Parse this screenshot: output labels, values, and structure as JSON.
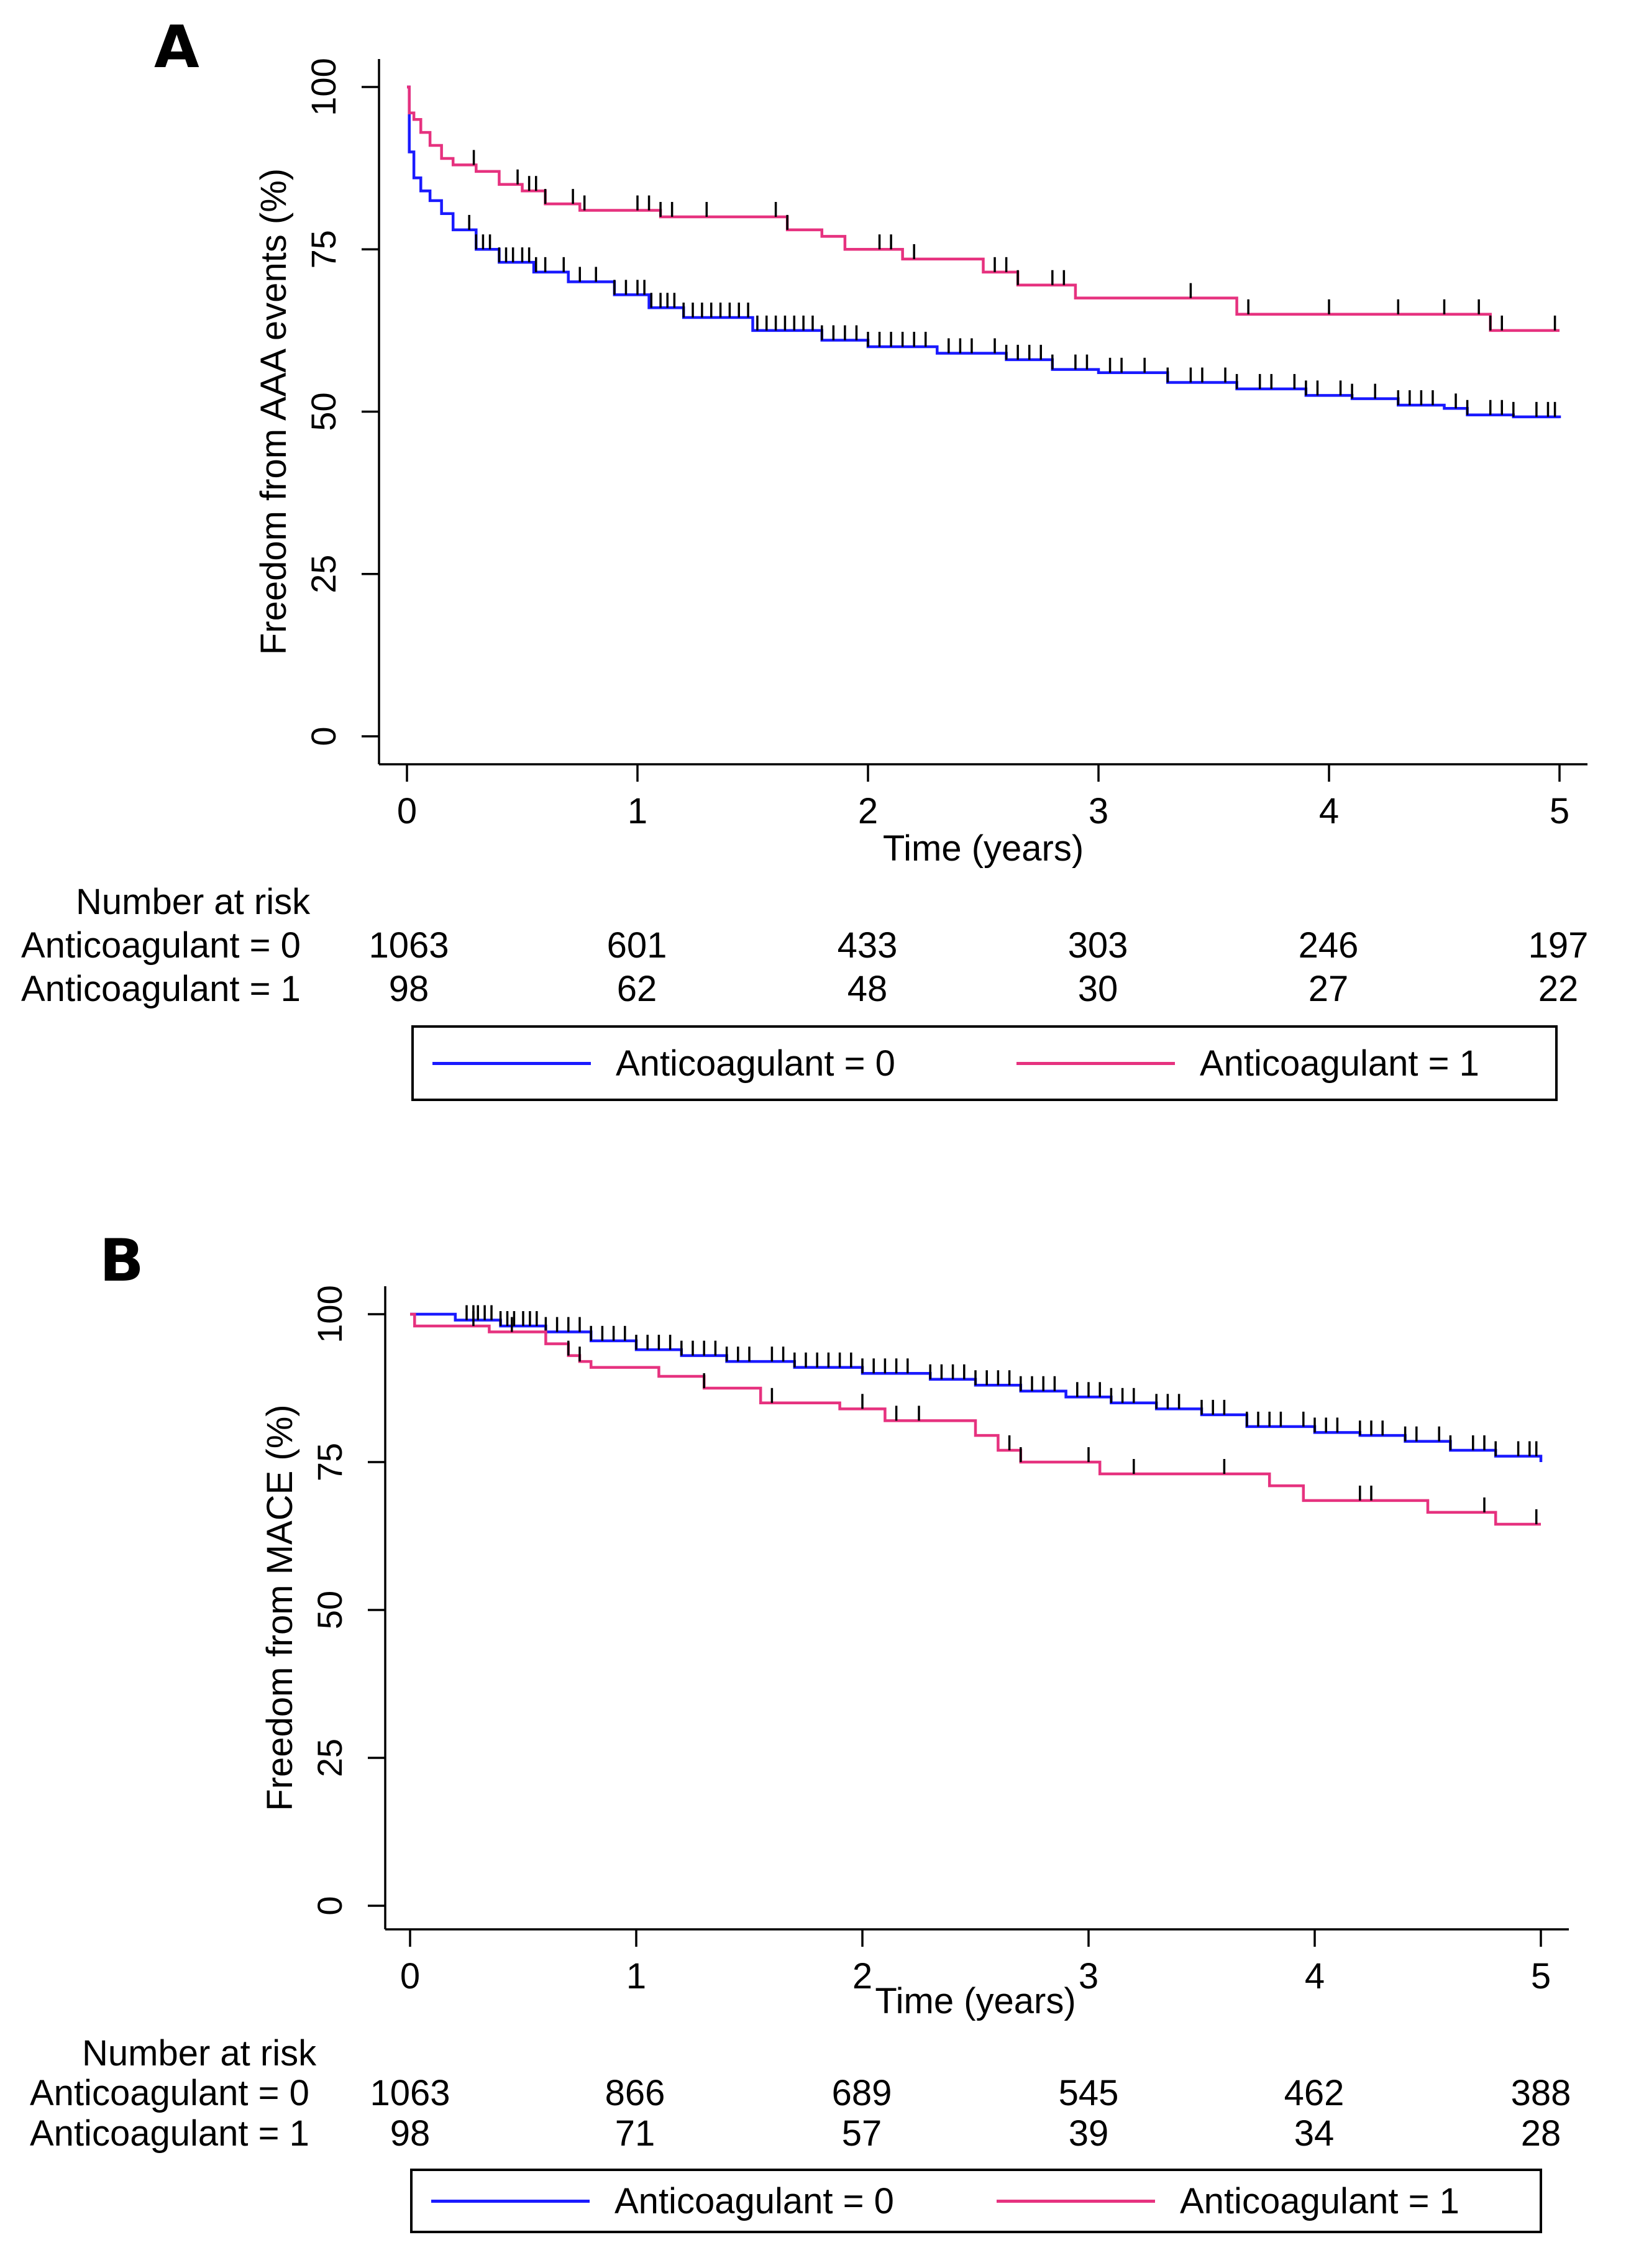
{
  "chart_data": [
    {
      "type": "line",
      "subtype": "kaplan-meier",
      "panel_label": "A",
      "xlabel": "Time (years)",
      "ylabel": "Freedom from AAA events (%)",
      "xlim": [
        0,
        5
      ],
      "ylim": [
        0,
        100
      ],
      "x_ticks": [
        "0",
        "1",
        "2",
        "3",
        "4",
        "5"
      ],
      "y_ticks": [
        "0",
        "25",
        "50",
        "75",
        "100"
      ],
      "colors": {
        "anticoagulant_0": "#1a1aff",
        "anticoagulant_1": "#e6327f",
        "censor": "#000000"
      },
      "series": [
        {
          "name": "Anticoagulant = 0",
          "color": "#1a1aff",
          "steps": [
            [
              0,
              100
            ],
            [
              0.01,
              90
            ],
            [
              0.03,
              86
            ],
            [
              0.06,
              84
            ],
            [
              0.1,
              82.5
            ],
            [
              0.15,
              80.5
            ],
            [
              0.2,
              78
            ],
            [
              0.3,
              75
            ],
            [
              0.4,
              73
            ],
            [
              0.55,
              71.5
            ],
            [
              0.7,
              70
            ],
            [
              0.9,
              68
            ],
            [
              1.05,
              66
            ],
            [
              1.2,
              64.5
            ],
            [
              1.5,
              62.5
            ],
            [
              1.8,
              61
            ],
            [
              2.0,
              60
            ],
            [
              2.3,
              59
            ],
            [
              2.6,
              58
            ],
            [
              2.8,
              56.5
            ],
            [
              3.0,
              56
            ],
            [
              3.3,
              54.5
            ],
            [
              3.6,
              53.5
            ],
            [
              3.9,
              52.5
            ],
            [
              4.1,
              52
            ],
            [
              4.3,
              51
            ],
            [
              4.5,
              50.5
            ],
            [
              4.6,
              49.5
            ],
            [
              4.8,
              49.2
            ],
            [
              5.0,
              49
            ]
          ],
          "censor_times": [
            0.27,
            0.3,
            0.33,
            0.36,
            0.4,
            0.43,
            0.46,
            0.5,
            0.53,
            0.56,
            0.6,
            0.68,
            0.75,
            0.82,
            0.9,
            0.95,
            1.0,
            1.03,
            1.06,
            1.1,
            1.13,
            1.16,
            1.2,
            1.24,
            1.28,
            1.32,
            1.36,
            1.4,
            1.44,
            1.48,
            1.52,
            1.56,
            1.6,
            1.64,
            1.68,
            1.72,
            1.76,
            1.8,
            1.85,
            1.9,
            1.95,
            2.0,
            2.05,
            2.1,
            2.15,
            2.2,
            2.25,
            2.35,
            2.4,
            2.45,
            2.55,
            2.6,
            2.65,
            2.7,
            2.75,
            2.8,
            2.9,
            2.95,
            3.05,
            3.1,
            3.2,
            3.3,
            3.4,
            3.45,
            3.55,
            3.6,
            3.7,
            3.75,
            3.85,
            3.9,
            3.95,
            4.05,
            4.1,
            4.2,
            4.3,
            4.35,
            4.4,
            4.45,
            4.55,
            4.6,
            4.7,
            4.75,
            4.8,
            4.9,
            4.95,
            4.98
          ]
        },
        {
          "name": "Anticoagulant = 1",
          "color": "#e6327f",
          "steps": [
            [
              0,
              100
            ],
            [
              0.01,
              96
            ],
            [
              0.03,
              95
            ],
            [
              0.06,
              93
            ],
            [
              0.1,
              91
            ],
            [
              0.15,
              89
            ],
            [
              0.2,
              88
            ],
            [
              0.3,
              87
            ],
            [
              0.4,
              85
            ],
            [
              0.5,
              84
            ],
            [
              0.6,
              82
            ],
            [
              0.75,
              81
            ],
            [
              1.1,
              80
            ],
            [
              1.65,
              78
            ],
            [
              1.8,
              77
            ],
            [
              1.9,
              75
            ],
            [
              2.15,
              73.5
            ],
            [
              2.5,
              71.5
            ],
            [
              2.65,
              69.5
            ],
            [
              2.9,
              67.5
            ],
            [
              3.6,
              65
            ],
            [
              4.7,
              62.5
            ],
            [
              5.0,
              62.5
            ]
          ],
          "censor_times": [
            0.29,
            0.48,
            0.53,
            0.56,
            0.6,
            0.72,
            0.77,
            1.0,
            1.05,
            1.1,
            1.15,
            1.3,
            1.6,
            1.65,
            2.05,
            2.1,
            2.2,
            2.55,
            2.6,
            2.65,
            2.8,
            2.85,
            3.4,
            3.65,
            4.0,
            4.3,
            4.5,
            4.65,
            4.7,
            4.75,
            4.98
          ]
        }
      ],
      "risk_table": {
        "title": "Number at risk",
        "rows": [
          {
            "label": "Anticoagulant = 0",
            "values": [
              "1063",
              "601",
              "433",
              "303",
              "246",
              "197"
            ]
          },
          {
            "label": "Anticoagulant = 1",
            "values": [
              "98",
              "62",
              "48",
              "30",
              "27",
              "22"
            ]
          }
        ]
      },
      "legend": [
        "Anticoagulant = 0",
        "Anticoagulant = 1"
      ],
      "legend_position": "bottom"
    },
    {
      "type": "line",
      "subtype": "kaplan-meier",
      "panel_label": "B",
      "xlabel": "Time (years)",
      "ylabel": "Freedom from MACE (%)",
      "xlim": [
        0,
        5
      ],
      "ylim": [
        0,
        100
      ],
      "x_ticks": [
        "0",
        "1",
        "2",
        "3",
        "4",
        "5"
      ],
      "y_ticks": [
        "0",
        "25",
        "50",
        "75",
        "100"
      ],
      "colors": {
        "anticoagulant_0": "#1a1aff",
        "anticoagulant_1": "#e6327f",
        "censor": "#000000"
      },
      "series": [
        {
          "name": "Anticoagulant = 0",
          "color": "#1a1aff",
          "steps": [
            [
              0,
              100
            ],
            [
              0.2,
              99
            ],
            [
              0.4,
              98
            ],
            [
              0.6,
              97
            ],
            [
              0.8,
              95.5
            ],
            [
              1.0,
              94
            ],
            [
              1.2,
              93
            ],
            [
              1.4,
              92
            ],
            [
              1.7,
              91
            ],
            [
              2.0,
              90
            ],
            [
              2.3,
              89
            ],
            [
              2.5,
              88
            ],
            [
              2.7,
              87
            ],
            [
              2.9,
              86
            ],
            [
              3.1,
              85
            ],
            [
              3.3,
              84
            ],
            [
              3.5,
              83
            ],
            [
              3.7,
              81
            ],
            [
              4.0,
              80
            ],
            [
              4.2,
              79.5
            ],
            [
              4.4,
              78.5
            ],
            [
              4.6,
              77
            ],
            [
              4.8,
              76
            ],
            [
              5.0,
              75
            ]
          ],
          "censor_times": [
            0.25,
            0.28,
            0.3,
            0.33,
            0.36,
            0.4,
            0.43,
            0.46,
            0.5,
            0.53,
            0.56,
            0.6,
            0.65,
            0.7,
            0.75,
            0.8,
            0.85,
            0.9,
            0.95,
            1.0,
            1.05,
            1.1,
            1.15,
            1.2,
            1.25,
            1.3,
            1.35,
            1.4,
            1.45,
            1.5,
            1.6,
            1.65,
            1.7,
            1.75,
            1.8,
            1.85,
            1.9,
            1.95,
            2.0,
            2.05,
            2.1,
            2.15,
            2.2,
            2.3,
            2.35,
            2.4,
            2.45,
            2.5,
            2.55,
            2.6,
            2.65,
            2.7,
            2.75,
            2.8,
            2.85,
            2.95,
            3.0,
            3.05,
            3.1,
            3.15,
            3.2,
            3.3,
            3.35,
            3.4,
            3.5,
            3.55,
            3.6,
            3.7,
            3.75,
            3.8,
            3.85,
            3.95,
            4.0,
            4.05,
            4.1,
            4.2,
            4.25,
            4.3,
            4.4,
            4.45,
            4.55,
            4.6,
            4.7,
            4.75,
            4.8,
            4.9,
            4.95,
            4.98
          ]
        },
        {
          "name": "Anticoagulant = 1",
          "color": "#e6327f",
          "steps": [
            [
              0,
              100
            ],
            [
              0.02,
              98
            ],
            [
              0.35,
              97
            ],
            [
              0.6,
              95
            ],
            [
              0.7,
              93
            ],
            [
              0.75,
              92
            ],
            [
              0.8,
              91
            ],
            [
              1.1,
              89.5
            ],
            [
              1.3,
              87.5
            ],
            [
              1.55,
              85
            ],
            [
              1.9,
              84
            ],
            [
              2.1,
              82
            ],
            [
              2.5,
              79.5
            ],
            [
              2.6,
              77
            ],
            [
              2.7,
              75
            ],
            [
              3.05,
              73
            ],
            [
              3.8,
              71
            ],
            [
              3.95,
              68.5
            ],
            [
              4.5,
              66.5
            ],
            [
              4.8,
              64.5
            ],
            [
              5.0,
              64.5
            ]
          ],
          "censor_times": [
            0.28,
            0.45,
            0.7,
            0.75,
            1.3,
            1.6,
            2.0,
            2.15,
            2.25,
            2.65,
            2.7,
            3.0,
            3.2,
            3.6,
            4.2,
            4.25,
            4.75,
            4.98
          ]
        }
      ],
      "risk_table": {
        "title": "Number at risk",
        "rows": [
          {
            "label": "Anticoagulant = 0",
            "values": [
              "1063",
              "866",
              "689",
              "545",
              "462",
              "388"
            ]
          },
          {
            "label": "Anticoagulant = 1",
            "values": [
              "98",
              "71",
              "57",
              "39",
              "34",
              "28"
            ]
          }
        ]
      },
      "legend": [
        "Anticoagulant = 0",
        "Anticoagulant = 1"
      ],
      "legend_position": "bottom"
    }
  ]
}
